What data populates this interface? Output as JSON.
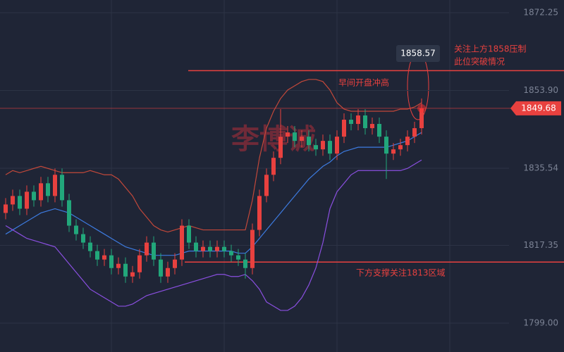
{
  "chart_data": {
    "type": "candlestick",
    "open": [
      1825,
      1827,
      1829,
      1826,
      1830,
      1828,
      1832,
      1829,
      1834,
      1828,
      1822,
      1820,
      1818,
      1816,
      1814,
      1815,
      1812,
      1813,
      1810,
      1811,
      1815,
      1818,
      1814,
      1810,
      1812,
      1814,
      1822,
      1818,
      1816,
      1817,
      1816,
      1817,
      1816,
      1815,
      1814,
      1812,
      1821,
      1829,
      1834,
      1838,
      1843,
      1844,
      1842,
      1843,
      1841,
      1840,
      1842,
      1839,
      1843,
      1847,
      1846,
      1848,
      1845,
      1846,
      1843,
      1839,
      1840,
      1841,
      1843,
      1845
    ],
    "high": [
      1828.5,
      1830.5,
      1830.5,
      1831.5,
      1831.5,
      1833.5,
      1833.5,
      1835.5,
      1835.5,
      1829.5,
      1823.5,
      1821.5,
      1819.5,
      1817.5,
      1816.5,
      1816.5,
      1814.5,
      1814.5,
      1812.5,
      1816.5,
      1819.5,
      1819.5,
      1815.5,
      1813.5,
      1815.5,
      1823.5,
      1823.5,
      1819.5,
      1818.5,
      1818.5,
      1818.5,
      1818.5,
      1817.5,
      1816.5,
      1815.5,
      1822.5,
      1830.5,
      1835.5,
      1839.5,
      1849.5,
      1845.5,
      1845.5,
      1844.5,
      1844.5,
      1842.5,
      1843.5,
      1843.5,
      1844.5,
      1848.5,
      1848.5,
      1849.5,
      1849.5,
      1847.5,
      1847.5,
      1844.5,
      1841.5,
      1842.5,
      1844.5,
      1846.5,
      1852
    ],
    "low": [
      1823.5,
      1825.5,
      1824.5,
      1824.5,
      1826.5,
      1826.5,
      1827.5,
      1827.5,
      1826.5,
      1820.5,
      1818.5,
      1816.5,
      1814.5,
      1812.5,
      1812.5,
      1810.5,
      1810.5,
      1808.5,
      1808.5,
      1809.5,
      1813.5,
      1812.5,
      1808.5,
      1808.5,
      1810.5,
      1812.5,
      1816.5,
      1814.5,
      1814.5,
      1814.5,
      1814.5,
      1814.5,
      1813.5,
      1812.5,
      1809.5,
      1810.5,
      1819.5,
      1827.5,
      1832.5,
      1836.5,
      1841.5,
      1840.5,
      1840.5,
      1839.5,
      1838.5,
      1838.5,
      1837.5,
      1837.5,
      1841.5,
      1844.5,
      1844.5,
      1843.5,
      1843.5,
      1841.5,
      1833,
      1837.5,
      1838.5,
      1839.5,
      1841.5,
      1843.5
    ],
    "close": [
      1827,
      1829,
      1826,
      1830,
      1828,
      1832,
      1829,
      1834,
      1828,
      1822,
      1820,
      1818,
      1816,
      1814,
      1815,
      1812,
      1813,
      1810,
      1811,
      1815,
      1818,
      1814,
      1810,
      1812,
      1814,
      1822,
      1818,
      1816,
      1817,
      1816,
      1817,
      1816,
      1815,
      1814,
      1812,
      1821,
      1829,
      1834,
      1838,
      1843,
      1844,
      1842,
      1843,
      1841,
      1840,
      1842,
      1839,
      1843,
      1847,
      1846,
      1848,
      1845,
      1846,
      1843,
      1839,
      1840,
      1841,
      1843,
      1845,
      1849.68
    ],
    "up_color": "#e8413f",
    "down_color": "#22a77b",
    "bands": [
      {
        "color": "#c2483a",
        "values": [
          1834,
          1835,
          1834.5,
          1835,
          1835.5,
          1836,
          1835.5,
          1835,
          1834.5,
          1834.5,
          1834.5,
          1834.5,
          1835,
          1834.5,
          1834,
          1834,
          1833,
          1831,
          1829,
          1826,
          1824,
          1822,
          1821,
          1820.5,
          1821,
          1821.5,
          1822,
          1821.5,
          1821,
          1821,
          1821,
          1821,
          1821,
          1821,
          1821,
          1828,
          1838,
          1845,
          1849,
          1852,
          1854,
          1855,
          1856,
          1856.5,
          1856.5,
          1856,
          1854,
          1851,
          1849.5,
          1849,
          1849,
          1849,
          1849,
          1849,
          1849,
          1849,
          1849.5,
          1849.5,
          1850,
          1851
        ]
      },
      {
        "color": "#3d7be0",
        "values": [
          1820,
          1821,
          1822,
          1823,
          1824,
          1825,
          1825.5,
          1826,
          1825.5,
          1825,
          1824,
          1823,
          1822,
          1821,
          1820,
          1819,
          1818,
          1817,
          1816.5,
          1816,
          1815.5,
          1815,
          1815,
          1815,
          1815,
          1815.5,
          1816,
          1816,
          1816,
          1816,
          1816,
          1816,
          1816,
          1815.5,
          1815.5,
          1817,
          1819,
          1821,
          1823,
          1825,
          1827,
          1829,
          1831,
          1833,
          1834.5,
          1836,
          1837,
          1838.5,
          1839.5,
          1840,
          1840.5,
          1840.5,
          1840.5,
          1840.5,
          1840.5,
          1841,
          1841.5,
          1842,
          1843,
          1844
        ]
      },
      {
        "color": "#8a4fe0",
        "values": [
          1822,
          1821,
          1820,
          1819,
          1818.5,
          1818,
          1817.5,
          1817,
          1815,
          1813,
          1811,
          1809,
          1807,
          1806,
          1805,
          1804,
          1803,
          1803,
          1803.5,
          1804.5,
          1805.5,
          1806,
          1806.5,
          1807,
          1807.5,
          1808,
          1808.5,
          1809,
          1809.5,
          1810,
          1810.5,
          1810.5,
          1810,
          1810,
          1810.5,
          1809,
          1807,
          1804,
          1803,
          1802,
          1802,
          1803,
          1805,
          1808,
          1812,
          1818,
          1826,
          1830,
          1832,
          1834,
          1835,
          1835,
          1835,
          1835,
          1835,
          1835,
          1835,
          1835.5,
          1836.5,
          1837.5
        ]
      }
    ],
    "ylim": [
      1792.19,
      1875.24
    ],
    "yticks": [
      1872.25,
      {
        "value": 1853.9,
        "label": "1853.90"
      },
      1835.54,
      1817.35,
      {
        "value": 1799,
        "label": "1799.00"
      }
    ],
    "resistance": 1858.57,
    "support": 1813.4,
    "watermark": "李博诚",
    "annotations": [
      "早间开盘冲高",
      "关注上方1858压制",
      "此位突破情况",
      "下方支撑关注1813区域"
    ]
  }
}
